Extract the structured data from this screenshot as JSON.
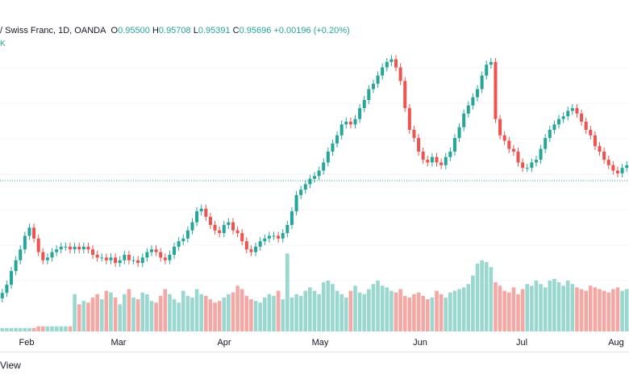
{
  "legend": {
    "symbol": "/ Swiss Franc, 1D, OANDA",
    "open_k": "O",
    "open_v": "0.95500",
    "high_k": "H",
    "high_v": "0.95708",
    "low_k": "L",
    "low_v": "0.95391",
    "close_k": "C",
    "close_v": "0.95696",
    "change": "+0.00196 (+0.20%)"
  },
  "volume_label": "K",
  "brand_text": "View",
  "colors": {
    "up": "#26a69a",
    "down": "#ef5350",
    "up_volume": "#9ad7cf",
    "down_volume": "#f5a7a4",
    "price_line": "#26a69a",
    "background": "#ffffff"
  },
  "chart_data": {
    "type": "candlestick",
    "x_tick_labels": [
      "Feb",
      "Mar",
      "Apr",
      "May",
      "Jun",
      "Jul",
      "Aug"
    ],
    "last_close": 0.95696,
    "price_series_close": [
      0.91,
      0.913,
      0.918,
      0.922,
      0.926,
      0.931,
      0.934,
      0.93,
      0.925,
      0.922,
      0.923,
      0.925,
      0.926,
      0.927,
      0.927,
      0.926,
      0.927,
      0.926,
      0.927,
      0.926,
      0.924,
      0.923,
      0.923,
      0.922,
      0.923,
      0.921,
      0.922,
      0.924,
      0.922,
      0.922,
      0.921,
      0.923,
      0.925,
      0.926,
      0.925,
      0.923,
      0.922,
      0.924,
      0.927,
      0.929,
      0.93,
      0.933,
      0.936,
      0.94,
      0.941,
      0.938,
      0.935,
      0.933,
      0.932,
      0.935,
      0.936,
      0.933,
      0.932,
      0.929,
      0.926,
      0.925,
      0.927,
      0.929,
      0.93,
      0.931,
      0.931,
      0.93,
      0.932,
      0.935,
      0.94,
      0.946,
      0.948,
      0.95,
      0.952,
      0.953,
      0.955,
      0.958,
      0.962,
      0.965,
      0.968,
      0.972,
      0.973,
      0.972,
      0.974,
      0.978,
      0.981,
      0.985,
      0.987,
      0.99,
      0.993,
      0.995,
      0.996,
      0.993,
      0.988,
      0.978,
      0.97,
      0.967,
      0.962,
      0.959,
      0.958,
      0.96,
      0.958,
      0.957,
      0.96,
      0.962,
      0.967,
      0.971,
      0.976,
      0.979,
      0.982,
      0.985,
      0.99,
      0.994,
      0.995,
      0.974,
      0.968,
      0.966,
      0.963,
      0.962,
      0.958,
      0.956,
      0.956,
      0.958,
      0.959,
      0.963,
      0.967,
      0.97,
      0.972,
      0.974,
      0.975,
      0.977,
      0.978,
      0.976,
      0.973,
      0.97,
      0.968,
      0.964,
      0.962,
      0.959,
      0.957,
      0.955,
      0.954,
      0.956,
      0.957
    ],
    "volume_series": [
      2,
      2,
      2,
      2,
      2,
      2,
      2,
      2,
      3,
      3,
      3,
      3,
      3,
      3,
      3,
      3,
      22,
      16,
      18,
      17,
      20,
      22,
      19,
      24,
      23,
      20,
      16,
      22,
      25,
      20,
      19,
      23,
      22,
      18,
      17,
      21,
      25,
      22,
      19,
      17,
      24,
      21,
      20,
      25,
      22,
      21,
      19,
      17,
      18,
      20,
      22,
      23,
      27,
      25,
      21,
      19,
      18,
      17,
      20,
      22,
      21,
      24,
      19,
      46,
      20,
      22,
      21,
      24,
      26,
      24,
      22,
      29,
      30,
      28,
      24,
      22,
      20,
      24,
      27,
      23,
      22,
      25,
      28,
      30,
      27,
      26,
      24,
      23,
      25,
      21,
      20,
      22,
      23,
      21,
      19,
      20,
      24,
      22,
      20,
      23,
      24,
      25,
      26,
      28,
      33,
      40,
      42,
      41,
      38,
      29,
      27,
      24,
      23,
      26,
      22,
      25,
      28,
      27,
      30,
      28,
      26,
      30,
      31,
      29,
      27,
      30,
      28,
      26,
      25,
      24,
      27,
      26,
      25,
      24,
      23,
      25,
      26,
      24,
      25
    ]
  }
}
